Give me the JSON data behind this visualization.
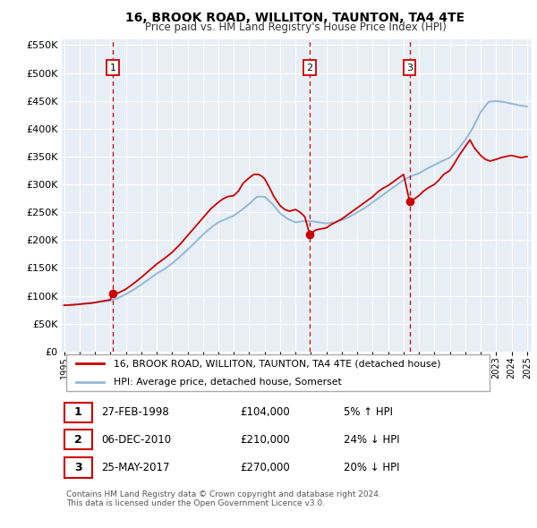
{
  "title": "16, BROOK ROAD, WILLITON, TAUNTON, TA4 4TE",
  "subtitle": "Price paid vs. HM Land Registry's House Price Index (HPI)",
  "ylim": [
    0,
    560000
  ],
  "yticks": [
    0,
    50000,
    100000,
    150000,
    200000,
    250000,
    300000,
    350000,
    400000,
    450000,
    500000,
    550000
  ],
  "background_color": "#ffffff",
  "plot_bg_color": "#e8eef5",
  "grid_color": "#ffffff",
  "hpi_color": "#93b8d8",
  "price_color": "#cc0000",
  "vline_color": "#cc0000",
  "transactions": [
    {
      "date_num": 1998.15,
      "price": 104000,
      "label": "1"
    },
    {
      "date_num": 2010.92,
      "price": 210000,
      "label": "2"
    },
    {
      "date_num": 2017.39,
      "price": 270000,
      "label": "3"
    }
  ],
  "transaction_table": [
    {
      "num": "1",
      "date": "27-FEB-1998",
      "price": "£104,000",
      "pct": "5% ↑ HPI"
    },
    {
      "num": "2",
      "date": "06-DEC-2010",
      "price": "£210,000",
      "pct": "24% ↓ HPI"
    },
    {
      "num": "3",
      "date": "25-MAY-2017",
      "price": "£270,000",
      "pct": "20% ↓ HPI"
    }
  ],
  "legend_property_label": "16, BROOK ROAD, WILLITON, TAUNTON, TA4 4TE (detached house)",
  "legend_hpi_label": "HPI: Average price, detached house, Somerset",
  "footer": "Contains HM Land Registry data © Crown copyright and database right 2024.\nThis data is licensed under the Open Government Licence v3.0.",
  "hpi_x": [
    1995.0,
    1995.5,
    1996.0,
    1996.5,
    1997.0,
    1997.5,
    1998.0,
    1998.5,
    1999.0,
    1999.5,
    2000.0,
    2000.5,
    2001.0,
    2001.5,
    2002.0,
    2002.5,
    2003.0,
    2003.5,
    2004.0,
    2004.5,
    2005.0,
    2005.5,
    2006.0,
    2006.5,
    2007.0,
    2007.5,
    2008.0,
    2008.5,
    2009.0,
    2009.5,
    2010.0,
    2010.5,
    2011.0,
    2011.5,
    2012.0,
    2012.5,
    2013.0,
    2013.5,
    2014.0,
    2014.5,
    2015.0,
    2015.5,
    2016.0,
    2016.5,
    2017.0,
    2017.5,
    2018.0,
    2018.5,
    2019.0,
    2019.5,
    2020.0,
    2020.5,
    2021.0,
    2021.5,
    2022.0,
    2022.5,
    2023.0,
    2023.5,
    2024.0,
    2024.5,
    2025.0
  ],
  "hpi_y": [
    83000,
    83500,
    85000,
    87000,
    88000,
    90000,
    91000,
    96000,
    103000,
    111000,
    120000,
    130000,
    140000,
    148000,
    158000,
    170000,
    183000,
    196000,
    210000,
    222000,
    232000,
    238000,
    244000,
    254000,
    265000,
    278000,
    278000,
    265000,
    248000,
    238000,
    232000,
    234000,
    234000,
    232000,
    230000,
    232000,
    236000,
    242000,
    250000,
    258000,
    268000,
    278000,
    288000,
    298000,
    308000,
    315000,
    320000,
    328000,
    335000,
    342000,
    348000,
    362000,
    380000,
    402000,
    430000,
    448000,
    450000,
    448000,
    445000,
    442000,
    440000
  ],
  "price_x": [
    1995.0,
    1995.3,
    1995.6,
    1996.0,
    1996.4,
    1996.8,
    1997.2,
    1997.6,
    1998.0,
    1998.15,
    1998.5,
    1999.0,
    1999.5,
    2000.0,
    2000.5,
    2001.0,
    2001.5,
    2002.0,
    2002.5,
    2003.0,
    2003.5,
    2004.0,
    2004.5,
    2005.0,
    2005.3,
    2005.6,
    2006.0,
    2006.3,
    2006.6,
    2007.0,
    2007.3,
    2007.6,
    2007.8,
    2008.0,
    2008.3,
    2008.6,
    2009.0,
    2009.3,
    2009.6,
    2010.0,
    2010.3,
    2010.6,
    2010.92,
    2011.0,
    2011.3,
    2011.6,
    2012.0,
    2012.3,
    2012.6,
    2013.0,
    2013.3,
    2013.6,
    2014.0,
    2014.3,
    2014.6,
    2015.0,
    2015.3,
    2015.6,
    2016.0,
    2016.3,
    2016.6,
    2017.0,
    2017.39,
    2017.6,
    2018.0,
    2018.3,
    2018.6,
    2019.0,
    2019.3,
    2019.6,
    2020.0,
    2020.3,
    2020.6,
    2021.0,
    2021.3,
    2021.6,
    2022.0,
    2022.3,
    2022.6,
    2023.0,
    2023.3,
    2023.6,
    2024.0,
    2024.3,
    2024.6,
    2025.0
  ],
  "price_y": [
    83000,
    83500,
    84000,
    85000,
    86000,
    87000,
    89000,
    91000,
    93000,
    104000,
    105000,
    112000,
    122000,
    133000,
    145000,
    157000,
    167000,
    178000,
    192000,
    208000,
    224000,
    240000,
    256000,
    268000,
    274000,
    278000,
    280000,
    288000,
    302000,
    312000,
    318000,
    318000,
    315000,
    310000,
    295000,
    278000,
    262000,
    255000,
    252000,
    255000,
    250000,
    242000,
    210000,
    212000,
    218000,
    220000,
    222000,
    228000,
    232000,
    238000,
    244000,
    250000,
    258000,
    264000,
    270000,
    278000,
    286000,
    292000,
    298000,
    304000,
    310000,
    318000,
    270000,
    272000,
    280000,
    288000,
    294000,
    300000,
    308000,
    318000,
    325000,
    338000,
    352000,
    368000,
    380000,
    365000,
    352000,
    345000,
    342000,
    345000,
    348000,
    350000,
    352000,
    350000,
    348000,
    350000
  ]
}
